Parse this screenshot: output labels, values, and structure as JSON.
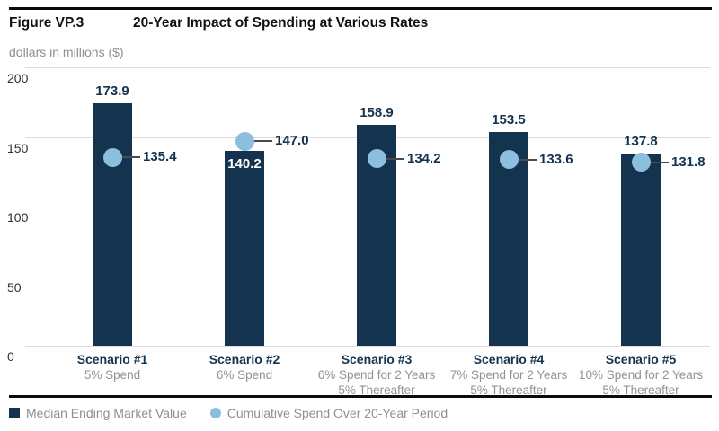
{
  "header": {
    "figure_label": "Figure VP.3",
    "title": "20-Year Impact of Spending at Various Rates",
    "subtitle": "dollars in millions ($)"
  },
  "chart_data": {
    "type": "bar",
    "title": "20-Year Impact of Spending at Various Rates",
    "ylabel": "dollars in millions ($)",
    "ylim": [
      0,
      200
    ],
    "yticks": [
      0,
      50,
      100,
      150,
      200
    ],
    "grid": true,
    "legend_position": "bottom",
    "categories": [
      {
        "title": "Scenario #1",
        "sublines": [
          "5% Spend"
        ]
      },
      {
        "title": "Scenario #2",
        "sublines": [
          "6% Spend"
        ]
      },
      {
        "title": "Scenario #3",
        "sublines": [
          "6% Spend for 2 Years",
          "5% Thereafter"
        ]
      },
      {
        "title": "Scenario #4",
        "sublines": [
          "7% Spend for 2 Years",
          "5% Thereafter"
        ]
      },
      {
        "title": "Scenario #5",
        "sublines": [
          "10% Spend for 2 Years",
          "5% Thereafter"
        ]
      }
    ],
    "series": [
      {
        "name": "Median Ending Market Value",
        "mark": "bar",
        "color": "#14334e",
        "values": [
          173.9,
          140.2,
          158.9,
          153.5,
          137.8
        ]
      },
      {
        "name": "Cumulative Spend Over 20-Year Period",
        "mark": "point",
        "color": "#8cbede",
        "values": [
          135.4,
          147.0,
          134.2,
          133.6,
          131.8
        ]
      }
    ]
  },
  "legend": {
    "items": [
      {
        "label": "Median Ending Market Value",
        "swatch": "square",
        "color": "#14334e"
      },
      {
        "label": "Cumulative Spend Over 20-Year Period",
        "swatch": "circle",
        "color": "#8cbede"
      }
    ]
  },
  "colors": {
    "bar": "#14334e",
    "dot": "#8cbede",
    "gridline": "#dcdde0",
    "rule": "#0a0a0a",
    "muted_text": "#8b9097"
  }
}
